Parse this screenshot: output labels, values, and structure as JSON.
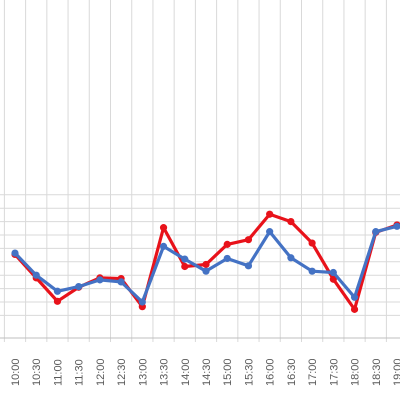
{
  "chart_data": {
    "type": "line",
    "categories": [
      "10:00",
      "10:30",
      "11:00",
      "11:30",
      "12:00",
      "12:30",
      "13:00",
      "13:30",
      "14:00",
      "14:30",
      "15:00",
      "15:30",
      "16:00",
      "16:30",
      "17:00",
      "17:30",
      "18:00",
      "18:30",
      "19:00"
    ],
    "series": [
      {
        "color": "#e8121a",
        "values": [
          71,
          36,
          1,
          22,
          36,
          35,
          -7,
          111,
          53,
          56,
          86,
          93,
          131,
          120,
          88,
          34,
          -11,
          104,
          115
        ]
      },
      {
        "color": "#4472c4",
        "values": [
          73,
          40,
          16,
          23,
          33,
          30,
          0,
          83,
          64,
          46,
          65,
          54,
          105,
          66,
          46,
          44,
          7,
          105,
          113
        ]
      }
    ],
    "ylim": [
      -20,
      160
    ],
    "grid": true
  }
}
